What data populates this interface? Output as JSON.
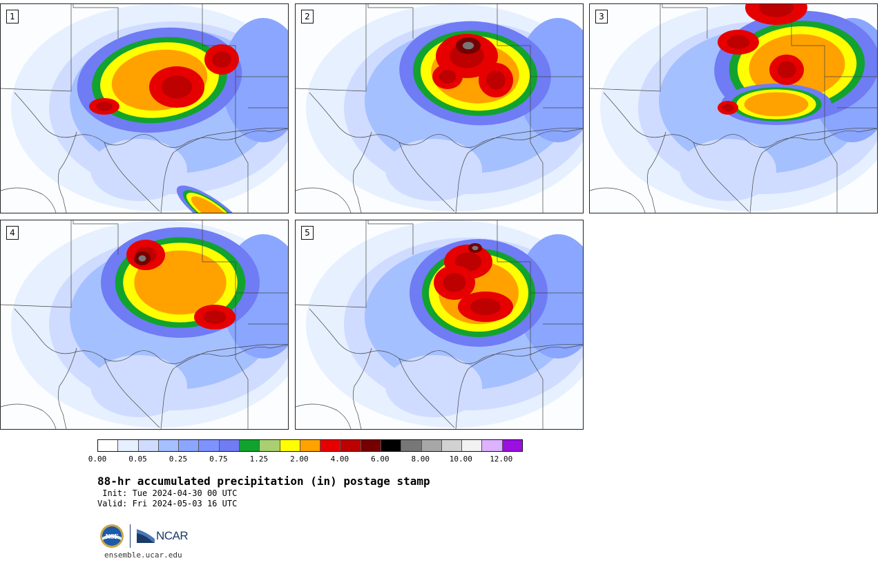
{
  "panels": [
    {
      "label": "1",
      "main": [
        [
          230,
          110,
          120,
          75,
          -8
        ],
        [
          305,
          300,
          60,
          18,
          35
        ]
      ],
      "cores": [
        [
          255,
          120,
          40,
          30
        ],
        [
          150,
          148,
          22,
          12
        ],
        [
          320,
          80,
          25,
          22
        ]
      ],
      "extremes": []
    },
    {
      "label": "2",
      "main": [
        [
          260,
          100,
          110,
          75,
          5
        ]
      ],
      "cores": [
        [
          248,
          75,
          45,
          32
        ],
        [
          290,
          110,
          25,
          25
        ],
        [
          220,
          105,
          22,
          18
        ]
      ],
      "extremes": [
        [
          250,
          60,
          18,
          12
        ]
      ]
    },
    {
      "label": "3",
      "main": [
        [
          300,
          90,
          120,
          80,
          -5
        ],
        [
          270,
          145,
          80,
          30,
          0
        ]
      ],
      "cores": [
        [
          270,
          5,
          45,
          25
        ],
        [
          215,
          55,
          30,
          18
        ],
        [
          285,
          95,
          25,
          22
        ],
        [
          200,
          150,
          15,
          10
        ]
      ],
      "extremes": []
    },
    {
      "label": "4",
      "main": [
        [
          260,
          90,
          115,
          80,
          0
        ]
      ],
      "cores": [
        [
          210,
          50,
          28,
          22
        ],
        [
          310,
          140,
          30,
          18
        ]
      ],
      "extremes": [
        [
          205,
          55,
          12,
          10
        ]
      ]
    },
    {
      "label": "5",
      "main": [
        [
          265,
          105,
          100,
          78,
          0
        ]
      ],
      "cores": [
        [
          250,
          60,
          35,
          25
        ],
        [
          230,
          90,
          30,
          25
        ],
        [
          275,
          125,
          40,
          22
        ]
      ],
      "extremes": [
        [
          260,
          40,
          10,
          7
        ]
      ]
    }
  ],
  "colorbar": {
    "colors": [
      "#ffffff",
      "#e6f0ff",
      "#cfdcff",
      "#a5c0ff",
      "#8aa6ff",
      "#7e93ff",
      "#6f7cf4",
      "#11a32e",
      "#a9cf72",
      "#ffff00",
      "#ffa200",
      "#e70000",
      "#bd0000",
      "#750000",
      "#000000",
      "#777777",
      "#a7a7a7",
      "#d2d2d2",
      "#f2f2f2",
      "#ddb2ff",
      "#9b0fe0"
    ],
    "labels": [
      "0.00",
      "0.05",
      "0.25",
      "0.75",
      "1.25",
      "2.00",
      "4.00",
      "6.00",
      "8.00",
      "10.00",
      "12.00"
    ]
  },
  "title": "88-hr accumulated precipitation (in) postage stamp",
  "init": " Init: Tue 2024-04-30 00 UTC",
  "valid": "Valid: Fri 2024-05-03 16 UTC",
  "logos": {
    "nsf_text": "NSF",
    "ncar_text": "NCAR"
  },
  "site": "ensemble.ucar.edu"
}
